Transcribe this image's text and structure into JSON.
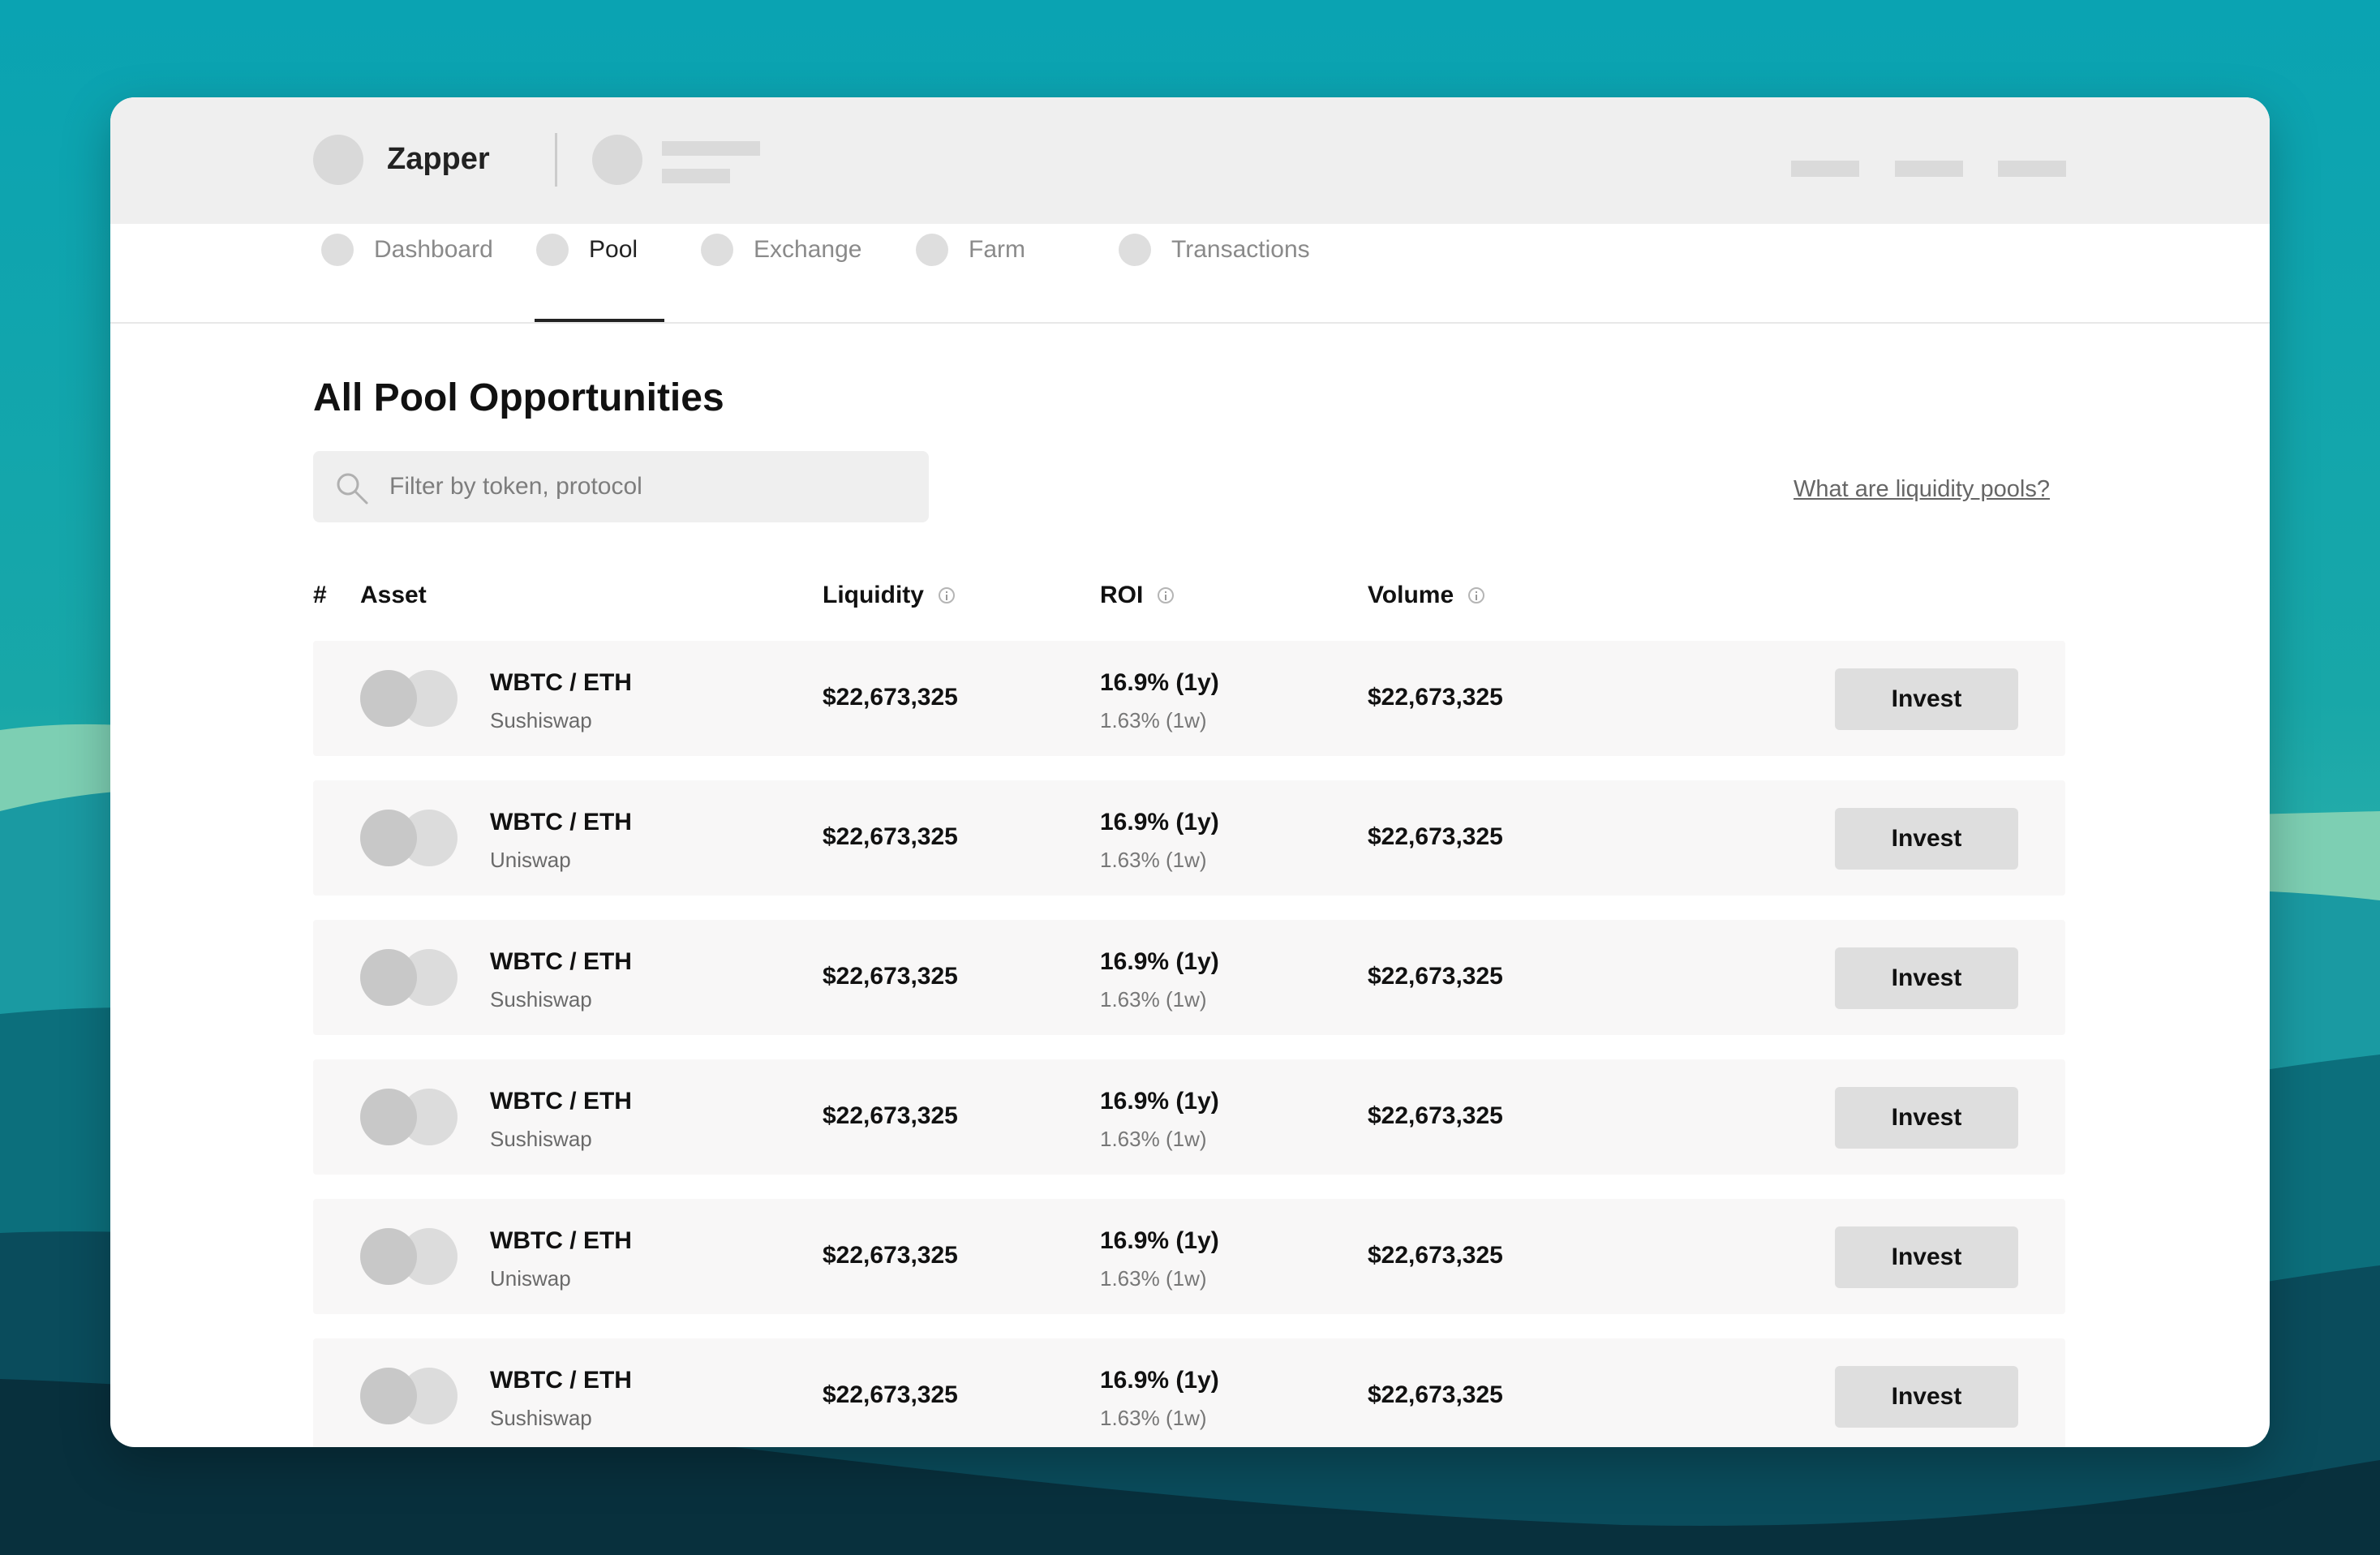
{
  "brand": {
    "name": "Zapper"
  },
  "nav": {
    "items": [
      {
        "label": "Dashboard"
      },
      {
        "label": "Pool"
      },
      {
        "label": "Exchange"
      },
      {
        "label": "Farm"
      },
      {
        "label": "Transactions"
      }
    ],
    "active": "Pool"
  },
  "page": {
    "title": "All Pool Opportunities",
    "search_placeholder": "Filter by token, protocol",
    "help_link": "What are liquidity pools?"
  },
  "table": {
    "headers": {
      "index": "#",
      "asset": "Asset",
      "liquidity": "Liquidity",
      "roi": "ROI",
      "volume": "Volume"
    },
    "rows": [
      {
        "pair": "WBTC / ETH",
        "protocol": "Sushiswap",
        "liquidity": "$22,673,325",
        "roi_year": "16.9% (1y)",
        "roi_week": "1.63% (1w)",
        "volume": "$22,673,325",
        "action": "Invest"
      },
      {
        "pair": "WBTC / ETH",
        "protocol": "Uniswap",
        "liquidity": "$22,673,325",
        "roi_year": "16.9% (1y)",
        "roi_week": "1.63% (1w)",
        "volume": "$22,673,325",
        "action": "Invest"
      },
      {
        "pair": "WBTC / ETH",
        "protocol": "Sushiswap",
        "liquidity": "$22,673,325",
        "roi_year": "16.9% (1y)",
        "roi_week": "1.63% (1w)",
        "volume": "$22,673,325",
        "action": "Invest"
      },
      {
        "pair": "WBTC / ETH",
        "protocol": "Sushiswap",
        "liquidity": "$22,673,325",
        "roi_year": "16.9% (1y)",
        "roi_week": "1.63% (1w)",
        "volume": "$22,673,325",
        "action": "Invest"
      },
      {
        "pair": "WBTC / ETH",
        "protocol": "Uniswap",
        "liquidity": "$22,673,325",
        "roi_year": "16.9% (1y)",
        "roi_week": "1.63% (1w)",
        "volume": "$22,673,325",
        "action": "Invest"
      },
      {
        "pair": "WBTC / ETH",
        "protocol": "Sushiswap",
        "liquidity": "$22,673,325",
        "roi_year": "16.9% (1y)",
        "roi_week": "1.63% (1w)",
        "volume": "$22,673,325",
        "action": "Invest"
      }
    ]
  },
  "icons": {
    "search": "search-icon",
    "info": "info-icon",
    "token": "token-icon"
  },
  "colors": {
    "background_teal": "#0f8f9c",
    "header_gray": "#efefef",
    "row_bg": "#f8f7f7",
    "button_bg": "#dedede"
  }
}
